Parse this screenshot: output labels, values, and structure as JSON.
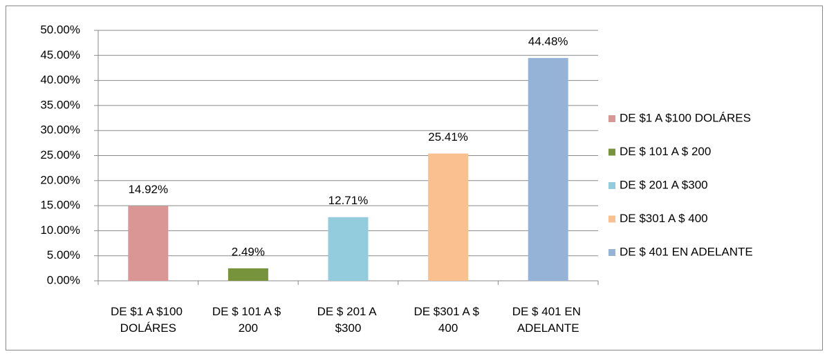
{
  "chart_data": {
    "type": "bar",
    "categories": [
      "DE $1 A $100 DOLÁRES",
      "DE $ 101 A $ 200",
      "DE $ 201 A $300",
      "DE $301 A $ 400",
      "DE $ 401 EN ADELANTE"
    ],
    "values": [
      14.92,
      2.49,
      12.71,
      25.41,
      44.48
    ],
    "value_labels": [
      "14.92%",
      "2.49%",
      "12.71%",
      "25.41%",
      "44.48%"
    ],
    "colors": [
      "#d99694",
      "#77933c",
      "#93cddd",
      "#fac090",
      "#95b3d7"
    ],
    "ylim": [
      0,
      50
    ],
    "yticks": [
      {
        "value": 0,
        "label": "0.00%"
      },
      {
        "value": 5,
        "label": "5.00%"
      },
      {
        "value": 10,
        "label": "10.00%"
      },
      {
        "value": 15,
        "label": "15.00%"
      },
      {
        "value": 20,
        "label": "20.00%"
      },
      {
        "value": 25,
        "label": "25.00%"
      },
      {
        "value": 30,
        "label": "30.00%"
      },
      {
        "value": 35,
        "label": "35.00%"
      },
      {
        "value": 40,
        "label": "40.00%"
      },
      {
        "value": 45,
        "label": "45.00%"
      },
      {
        "value": 50,
        "label": "50.00%"
      }
    ],
    "grid": true,
    "legend": "right"
  }
}
